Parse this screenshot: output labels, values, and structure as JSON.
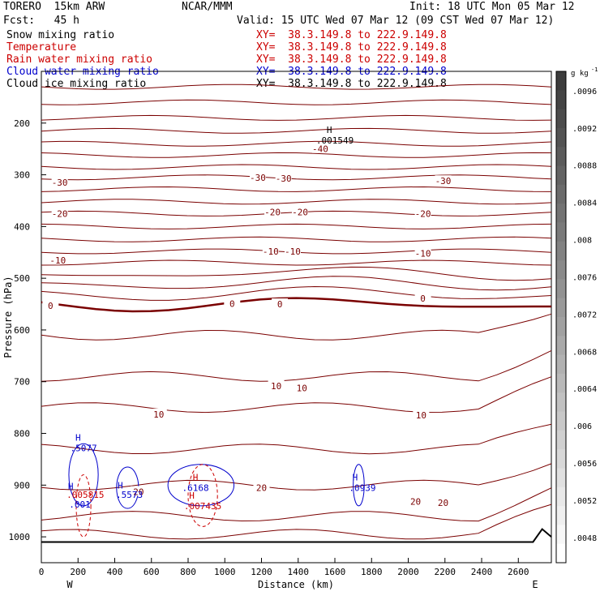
{
  "header": {
    "model": "TORERO  15km ARW",
    "org": "NCAR/MMM",
    "init": "Init: 18 UTC Mon 05 Mar 12",
    "fcst": "Fcst:   45 h",
    "valid": "Valid: 15 UTC Wed 07 Mar 12 (09 CST Wed 07 Mar 12)",
    "fields": [
      {
        "name": "Snow mixing ratio",
        "xy": "XY=  38.3.149.8 to 222.9.149.8"
      },
      {
        "name": "Temperature",
        "xy": "XY=  38.3.149.8 to 222.9.149.8"
      },
      {
        "name": "Rain water mixing ratio",
        "xy": "XY=  38.3.149.8 to 222.9.149.8"
      },
      {
        "name": "Cloud water mixing ratio",
        "xy": "XY=  38.3.149.8 to 222.9.149.8"
      },
      {
        "name": "Cloud ice mixing ratio",
        "xy": "XY=  38.3.149.8 to 222.9.149.8"
      }
    ],
    "colors": {
      "snow": "#000000",
      "temperature": "#7a0000",
      "rain": "#cc0000",
      "cloud_water": "#0000cc",
      "cloud_ice": "#000000"
    }
  },
  "chart_data": {
    "type": "contour",
    "xlabel": "Distance (km)",
    "ylabel": "Pressure (hPa)",
    "xlim": [
      0,
      2780
    ],
    "ylim": [
      1050,
      100
    ],
    "y_scale": "linear",
    "x_ticks": [
      0,
      200,
      400,
      600,
      800,
      1000,
      1200,
      1400,
      1600,
      1800,
      2000,
      2200,
      2400,
      2600
    ],
    "y_ticks": [
      200,
      300,
      400,
      500,
      600,
      700,
      800,
      900,
      1000
    ],
    "x_end_labels": {
      "left": "W",
      "right": "E"
    },
    "colorbar": {
      "unit": "g kg",
      "unit_exp": "-1",
      "ticks": [
        ".0096",
        ".0092",
        ".0088",
        ".0084",
        ".008",
        ".0076",
        ".0072",
        ".0068",
        ".0064",
        ".006",
        ".0056",
        ".0052",
        ".0048"
      ]
    },
    "temperature_contour_labels": [
      {
        "text": "-40",
        "x": 1520,
        "p": 250
      },
      {
        "text": "-30",
        "x": 100,
        "p": 315
      },
      {
        "text": "-30",
        "x": 1180,
        "p": 305
      },
      {
        "text": "-30",
        "x": 1320,
        "p": 307
      },
      {
        "text": "-30",
        "x": 2190,
        "p": 312
      },
      {
        "text": "-20",
        "x": 100,
        "p": 375
      },
      {
        "text": "-20",
        "x": 1260,
        "p": 372
      },
      {
        "text": "-20",
        "x": 1410,
        "p": 372
      },
      {
        "text": "-20",
        "x": 2080,
        "p": 375
      },
      {
        "text": "-10",
        "x": 90,
        "p": 465
      },
      {
        "text": "-10",
        "x": 1250,
        "p": 448
      },
      {
        "text": "-10",
        "x": 1370,
        "p": 448
      },
      {
        "text": "-10",
        "x": 2080,
        "p": 452
      },
      {
        "text": "0",
        "x": 50,
        "p": 553
      },
      {
        "text": "0",
        "x": 1040,
        "p": 549
      },
      {
        "text": "0",
        "x": 1300,
        "p": 550
      },
      {
        "text": "0",
        "x": 2080,
        "p": 539
      },
      {
        "text": "10",
        "x": 640,
        "p": 763
      },
      {
        "text": "10",
        "x": 1280,
        "p": 708
      },
      {
        "text": "10",
        "x": 1420,
        "p": 712
      },
      {
        "text": "10",
        "x": 2070,
        "p": 765
      },
      {
        "text": "20",
        "x": 530,
        "p": 913
      },
      {
        "text": "20",
        "x": 1200,
        "p": 905
      },
      {
        "text": "20",
        "x": 2040,
        "p": 932
      },
      {
        "text": "20",
        "x": 2190,
        "p": 934
      }
    ],
    "max_labels": [
      {
        "field": "snow",
        "text": "H",
        "x": 1570,
        "p": 213
      },
      {
        "field": "snow",
        "text": ".001549",
        "x": 1600,
        "p": 233
      },
      {
        "field": "cloud_water",
        "text": "H",
        "x": 200,
        "p": 808
      },
      {
        "field": "cloud_water",
        "text": ".5077",
        "x": 230,
        "p": 828
      },
      {
        "field": "cloud_water",
        "text": "H",
        "x": 160,
        "p": 902
      },
      {
        "field": "cloud_water",
        "text": ".001",
        "x": 210,
        "p": 937
      },
      {
        "field": "rain",
        "text": ".005815",
        "x": 240,
        "p": 918
      },
      {
        "field": "cloud_water",
        "text": "H",
        "x": 430,
        "p": 900
      },
      {
        "field": "cloud_water",
        "text": ".5573",
        "x": 480,
        "p": 918
      },
      {
        "field": "rain",
        "text": "H",
        "x": 840,
        "p": 885
      },
      {
        "field": "cloud_water",
        "text": ".6168",
        "x": 840,
        "p": 905
      },
      {
        "field": "rain",
        "text": "H",
        "x": 820,
        "p": 920
      },
      {
        "field": "rain",
        "text": ".007435",
        "x": 880,
        "p": 940
      },
      {
        "field": "cloud_water",
        "text": "H",
        "x": 1710,
        "p": 885
      },
      {
        "field": "cloud_water",
        "text": ".0939",
        "x": 1750,
        "p": 905
      }
    ]
  }
}
